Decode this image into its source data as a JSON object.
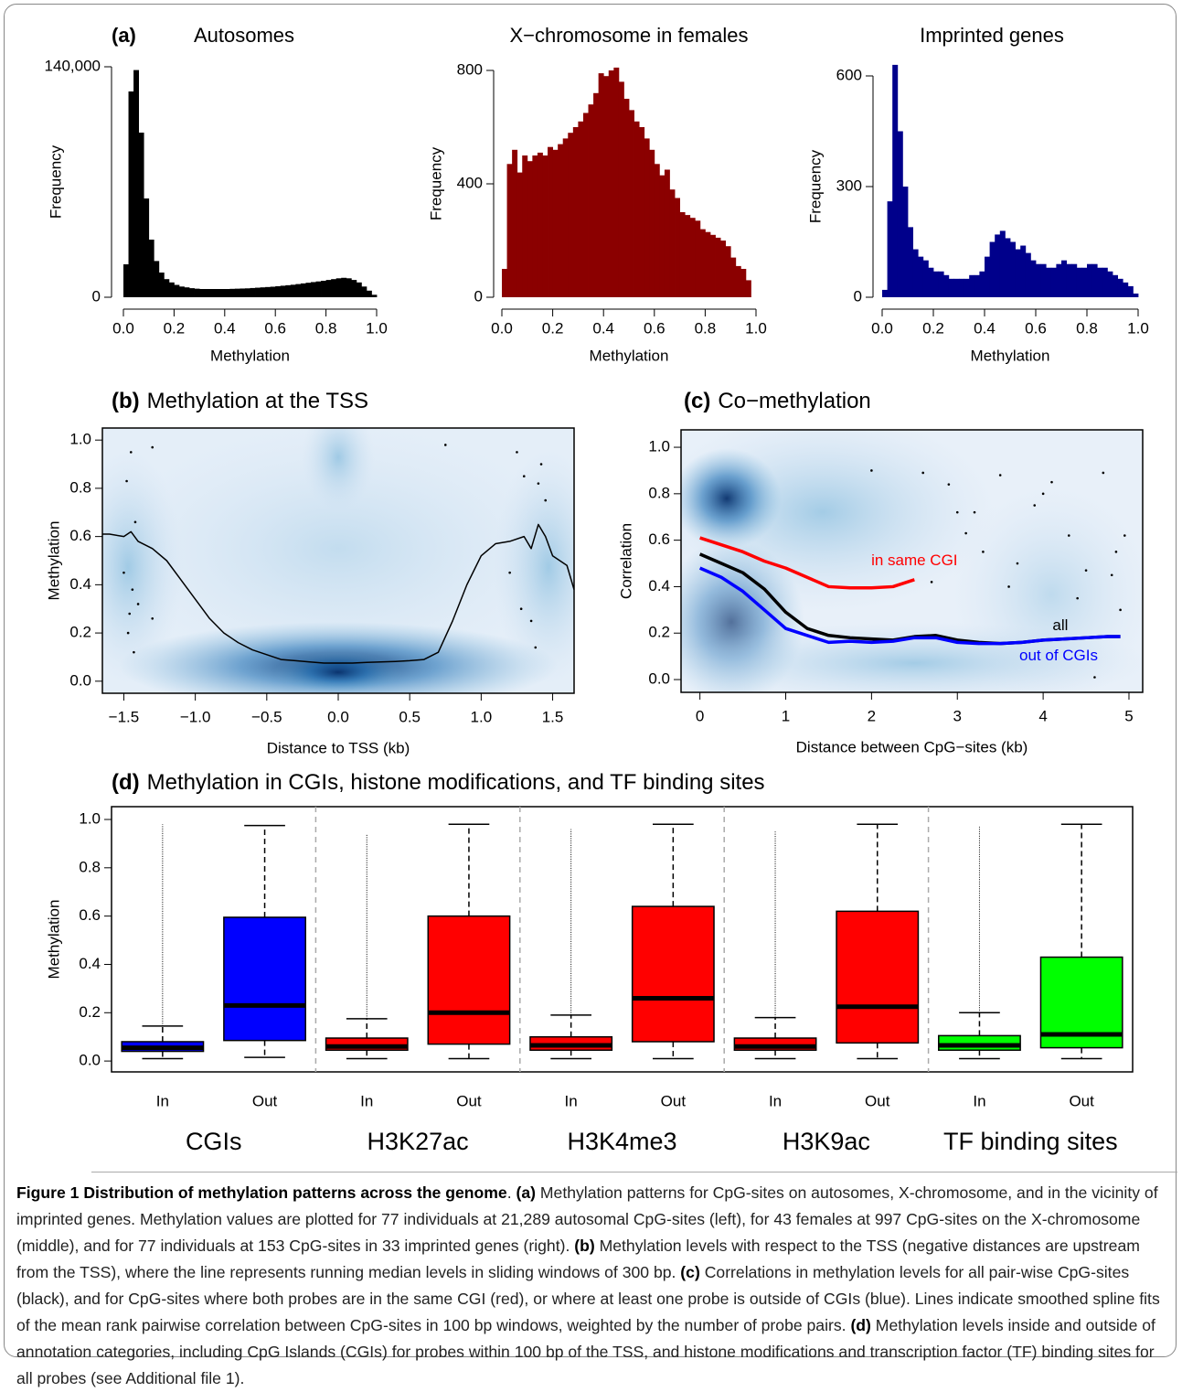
{
  "chart_data": [
    {
      "type": "histogram",
      "panel": "(a)",
      "title": "Autosomes",
      "xlabel": "Methylation",
      "ylabel": "Frequency",
      "color": "#000000",
      "bins": [
        0,
        0.02,
        0.04,
        0.06,
        0.08,
        0.1,
        0.12,
        0.14,
        0.16,
        0.18,
        0.2,
        0.22,
        0.24,
        0.26,
        0.28,
        0.3,
        0.32,
        0.34,
        0.36,
        0.38,
        0.4,
        0.42,
        0.44,
        0.46,
        0.48,
        0.5,
        0.52,
        0.54,
        0.56,
        0.58,
        0.6,
        0.62,
        0.64,
        0.66,
        0.68,
        0.7,
        0.72,
        0.74,
        0.76,
        0.78,
        0.8,
        0.82,
        0.84,
        0.86,
        0.88,
        0.9,
        0.92,
        0.94,
        0.96,
        0.98,
        1
      ],
      "counts": [
        20000,
        125000,
        138000,
        100000,
        60000,
        35000,
        22000,
        15000,
        11000,
        9000,
        7500,
        6500,
        6000,
        5500,
        5200,
        5000,
        5000,
        5000,
        5000,
        5000,
        5000,
        5100,
        5200,
        5300,
        5400,
        5600,
        5800,
        6000,
        6200,
        6400,
        6700,
        7000,
        7300,
        7600,
        8000,
        8400,
        8800,
        9200,
        9600,
        10000,
        10500,
        11000,
        11500,
        11800,
        11500,
        10500,
        9000,
        6500,
        4000,
        1500
      ],
      "xlim": [
        0,
        1
      ],
      "xticks": [
        {
          "value": 0,
          "label": "0.0"
        },
        0.2,
        0.4,
        0.6,
        0.8,
        {
          "value": 1,
          "label": "1.0"
        }
      ],
      "ylim": [
        0,
        140000
      ],
      "yticks": [
        0,
        {
          "value": 140000,
          "label": "140,000"
        }
      ]
    },
    {
      "type": "histogram",
      "title": "X−chromosome in females",
      "xlabel": "Methylation",
      "ylabel": "Frequency",
      "color": "#8b0000",
      "bins": [
        0,
        0.02,
        0.04,
        0.06,
        0.08,
        0.1,
        0.12,
        0.14,
        0.16,
        0.18,
        0.2,
        0.22,
        0.24,
        0.26,
        0.28,
        0.3,
        0.32,
        0.34,
        0.36,
        0.38,
        0.4,
        0.42,
        0.44,
        0.46,
        0.48,
        0.5,
        0.52,
        0.54,
        0.56,
        0.58,
        0.6,
        0.62,
        0.64,
        0.66,
        0.68,
        0.7,
        0.72,
        0.74,
        0.76,
        0.78,
        0.8,
        0.82,
        0.84,
        0.86,
        0.88,
        0.9,
        0.92,
        0.94,
        0.96,
        0.98,
        1
      ],
      "counts": [
        100,
        470,
        520,
        440,
        500,
        480,
        500,
        510,
        500,
        530,
        520,
        540,
        560,
        580,
        600,
        620,
        650,
        680,
        720,
        790,
        780,
        800,
        810,
        760,
        700,
        660,
        620,
        600,
        560,
        520,
        470,
        430,
        450,
        380,
        350,
        300,
        290,
        280,
        270,
        240,
        230,
        220,
        210,
        200,
        180,
        140,
        110,
        100,
        60,
        0
      ],
      "xlim": [
        0,
        1
      ],
      "xticks": [
        {
          "value": 0,
          "label": "0.0"
        },
        0.2,
        0.4,
        0.6,
        0.8,
        {
          "value": 1,
          "label": "1.0"
        }
      ],
      "ylim": [
        0,
        800
      ],
      "yticks": [
        0,
        400,
        800
      ]
    },
    {
      "type": "histogram",
      "title": "Imprinted genes",
      "xlabel": "Methylation",
      "ylabel": "Frequency",
      "color": "#00008b",
      "bins": [
        0,
        0.02,
        0.04,
        0.06,
        0.08,
        0.1,
        0.12,
        0.14,
        0.16,
        0.18,
        0.2,
        0.22,
        0.24,
        0.26,
        0.28,
        0.3,
        0.32,
        0.34,
        0.36,
        0.38,
        0.4,
        0.42,
        0.44,
        0.46,
        0.48,
        0.5,
        0.52,
        0.54,
        0.56,
        0.58,
        0.6,
        0.62,
        0.64,
        0.66,
        0.68,
        0.7,
        0.72,
        0.74,
        0.76,
        0.78,
        0.8,
        0.82,
        0.84,
        0.86,
        0.88,
        0.9,
        0.92,
        0.94,
        0.96,
        0.98,
        1
      ],
      "counts": [
        20,
        260,
        630,
        450,
        300,
        190,
        130,
        110,
        100,
        80,
        70,
        70,
        60,
        50,
        50,
        50,
        50,
        60,
        60,
        70,
        110,
        150,
        170,
        180,
        160,
        150,
        130,
        140,
        120,
        100,
        90,
        90,
        80,
        80,
        90,
        100,
        90,
        90,
        80,
        80,
        90,
        90,
        80,
        80,
        70,
        60,
        50,
        40,
        30,
        10
      ],
      "xlim": [
        0,
        1
      ],
      "xticks": [
        {
          "value": 0,
          "label": "0.0"
        },
        0.2,
        0.4,
        0.6,
        0.8,
        {
          "value": 1,
          "label": "1.0"
        }
      ],
      "ylim": [
        0,
        600
      ],
      "yticks": [
        0,
        300,
        600
      ]
    },
    {
      "type": "line",
      "panel": "(b)",
      "title": "Methylation at the TSS",
      "xlabel": "Distance to TSS (kb)",
      "ylabel": "Methylation",
      "xlim": [
        -1.65,
        1.65
      ],
      "ylim": [
        -0.05,
        1.05
      ],
      "xticks": [
        {
          "value": -1.5,
          "label": "−1.5"
        },
        {
          "value": -1,
          "label": "−1.0"
        },
        {
          "value": -0.5,
          "label": "−0.5"
        },
        {
          "value": 0,
          "label": "0.0"
        },
        0.5,
        {
          "value": 1,
          "label": "1.0"
        },
        1.5
      ],
      "yticks": [
        {
          "value": 0,
          "label": "0.0"
        },
        0.2,
        0.4,
        0.6,
        0.8,
        {
          "value": 1,
          "label": "1.0"
        }
      ],
      "series": [
        {
          "color": "#000000",
          "x": [
            -1.65,
            -1.6,
            -1.5,
            -1.45,
            -1.4,
            -1.3,
            -1.2,
            -1.1,
            -1.0,
            -0.9,
            -0.8,
            -0.7,
            -0.6,
            -0.5,
            -0.4,
            -0.3,
            -0.2,
            -0.1,
            0,
            0.1,
            0.2,
            0.3,
            0.4,
            0.5,
            0.6,
            0.7,
            0.8,
            0.9,
            1.0,
            1.1,
            1.2,
            1.3,
            1.35,
            1.4,
            1.45,
            1.5,
            1.6,
            1.65
          ],
          "values": [
            0.61,
            0.61,
            0.6,
            0.62,
            0.58,
            0.55,
            0.5,
            0.42,
            0.34,
            0.26,
            0.2,
            0.16,
            0.13,
            0.11,
            0.09,
            0.085,
            0.08,
            0.075,
            0.075,
            0.075,
            0.078,
            0.08,
            0.082,
            0.085,
            0.09,
            0.12,
            0.25,
            0.4,
            0.52,
            0.57,
            0.58,
            0.6,
            0.55,
            0.65,
            0.6,
            0.52,
            0.48,
            0.38
          ]
        }
      ],
      "points": {
        "x": [
          -1.45,
          -1.48,
          -1.42,
          -1.5,
          -1.44,
          -1.4,
          -1.46,
          -1.47,
          -1.43,
          -1.3,
          1.25,
          1.3,
          1.28,
          1.35,
          1.4,
          1.42,
          1.38,
          1.45,
          0.75,
          -1.3,
          1.2
        ],
        "values": [
          0.95,
          0.83,
          0.66,
          0.45,
          0.38,
          0.32,
          0.28,
          0.2,
          0.12,
          0.97,
          0.95,
          0.85,
          0.3,
          0.25,
          0.82,
          0.9,
          0.14,
          0.75,
          0.98,
          0.26,
          0.45
        ]
      }
    },
    {
      "type": "line",
      "panel": "(c)",
      "title": "Co−methylation",
      "xlabel": "Distance between CpG−sites (kb)",
      "ylabel": "Correlation",
      "xlim": [
        -0.22,
        5.16
      ],
      "ylim": [
        -0.055,
        1.075
      ],
      "xticks": [
        0,
        1,
        2,
        3,
        4,
        5
      ],
      "yticks": [
        {
          "value": 0,
          "label": "0.0"
        },
        0.2,
        0.4,
        0.6,
        0.8,
        {
          "value": 1,
          "label": "1.0"
        }
      ],
      "series": [
        {
          "name": "in same CGI",
          "color": "#ff0000",
          "x": [
            0,
            0.25,
            0.5,
            0.75,
            1,
            1.25,
            1.5,
            1.75,
            2,
            2.25,
            2.5
          ],
          "values": [
            0.61,
            0.58,
            0.55,
            0.51,
            0.48,
            0.44,
            0.4,
            0.395,
            0.395,
            0.4,
            0.43
          ]
        },
        {
          "name": "all",
          "color": "#000000",
          "x": [
            0,
            0.25,
            0.5,
            0.75,
            1,
            1.25,
            1.5,
            1.75,
            2,
            2.25,
            2.5,
            2.75,
            3,
            3.25,
            3.5,
            3.75,
            4,
            4.25,
            4.5,
            4.75,
            4.9
          ],
          "values": [
            0.54,
            0.5,
            0.46,
            0.39,
            0.29,
            0.22,
            0.19,
            0.18,
            0.175,
            0.17,
            0.185,
            0.19,
            0.17,
            0.16,
            0.155,
            0.16,
            0.17,
            0.175,
            0.18,
            0.185,
            0.185
          ]
        },
        {
          "name": "out of CGIs",
          "color": "#0000ff",
          "x": [
            0,
            0.25,
            0.5,
            0.75,
            1,
            1.25,
            1.5,
            1.75,
            2,
            2.25,
            2.5,
            2.75,
            3,
            3.25,
            3.5,
            3.75,
            4,
            4.25,
            4.5,
            4.75,
            4.9
          ],
          "values": [
            0.48,
            0.44,
            0.38,
            0.3,
            0.22,
            0.19,
            0.16,
            0.165,
            0.16,
            0.165,
            0.18,
            0.18,
            0.16,
            0.155,
            0.155,
            0.16,
            0.17,
            0.175,
            0.18,
            0.185,
            0.185
          ]
        }
      ],
      "points": {
        "x": [
          2.0,
          2.6,
          2.9,
          3.1,
          3.3,
          3.5,
          3.7,
          3.9,
          4.1,
          4.3,
          4.5,
          4.7,
          4.85,
          4.9,
          3.2,
          3.6,
          4.0,
          4.4,
          4.8,
          4.95,
          4.6,
          3.0,
          2.7
        ],
        "values": [
          0.9,
          0.89,
          0.84,
          0.63,
          0.55,
          0.88,
          0.5,
          0.75,
          0.85,
          0.62,
          0.47,
          0.89,
          0.55,
          0.3,
          0.72,
          0.4,
          0.8,
          0.35,
          0.45,
          0.62,
          0.01,
          0.72,
          0.42
        ]
      }
    },
    {
      "type": "box",
      "panel": "(d)",
      "title": "Methylation in CGIs, histone modifications, and TF binding sites",
      "ylabel": "Methylation",
      "categories": [
        "In",
        "Out",
        "In",
        "Out",
        "In",
        "Out",
        "In",
        "Out",
        "In",
        "Out"
      ],
      "groups": [
        "CGIs",
        "H3K27ac",
        "H3K4me3",
        "H3K9ac",
        "TF binding sites"
      ],
      "colors": [
        "#0000ff",
        "#0000ff",
        "#ff0000",
        "#ff0000",
        "#ff0000",
        "#ff0000",
        "#ff0000",
        "#ff0000",
        "#00ff00",
        "#00ff00"
      ],
      "boxes": [
        {
          "whislo": 0.01,
          "q1": 0.04,
          "med": 0.055,
          "q3": 0.08,
          "whishi": 0.145,
          "fliers_max": 0.98
        },
        {
          "whislo": 0.015,
          "q1": 0.085,
          "med": 0.23,
          "q3": 0.595,
          "whishi": 0.975
        },
        {
          "whislo": 0.01,
          "q1": 0.045,
          "med": 0.06,
          "q3": 0.095,
          "whishi": 0.175,
          "fliers_max": 0.94
        },
        {
          "whislo": 0.01,
          "q1": 0.07,
          "med": 0.2,
          "q3": 0.6,
          "whishi": 0.98
        },
        {
          "whislo": 0.01,
          "q1": 0.045,
          "med": 0.065,
          "q3": 0.1,
          "whishi": 0.19,
          "fliers_max": 0.96
        },
        {
          "whislo": 0.01,
          "q1": 0.08,
          "med": 0.26,
          "q3": 0.64,
          "whishi": 0.98
        },
        {
          "whislo": 0.01,
          "q1": 0.045,
          "med": 0.06,
          "q3": 0.095,
          "whishi": 0.18,
          "fliers_max": 0.95
        },
        {
          "whislo": 0.01,
          "q1": 0.075,
          "med": 0.225,
          "q3": 0.62,
          "whishi": 0.98
        },
        {
          "whislo": 0.01,
          "q1": 0.045,
          "med": 0.065,
          "q3": 0.105,
          "whishi": 0.2,
          "fliers_max": 0.97
        },
        {
          "whislo": 0.01,
          "q1": 0.055,
          "med": 0.11,
          "q3": 0.43,
          "whishi": 0.98
        }
      ],
      "ylim": [
        -0.045,
        1.053
      ],
      "yticks": [
        {
          "value": 0,
          "label": "0.0"
        },
        0.2,
        0.4,
        0.6,
        0.8,
        {
          "value": 1,
          "label": "1.0"
        }
      ]
    }
  ],
  "caption": [
    {
      "text": "Figure 1 Distribution of methylation patterns across the genome",
      "bold": true
    },
    {
      "text": ". "
    },
    {
      "text": "(a)",
      "bold": true
    },
    {
      "text": " Methylation patterns for CpG-sites on autosomes, X-chromosome, and in the vicinity of imprinted genes. Methylation values are plotted for 77 individuals at 21,289 autosomal CpG-sites (left), for 43 females at 997 CpG-sites on the X-chromosome (middle), and for 77 individuals at 153 CpG-sites in 33 imprinted genes (right). "
    },
    {
      "text": "(b)",
      "bold": true
    },
    {
      "text": " Methylation levels with respect to the TSS (negative distances are upstream from the TSS), where the line represents running median levels in sliding windows of 300 bp. "
    },
    {
      "text": "(c)",
      "bold": true
    },
    {
      "text": " Correlations in methylation levels for all pair-wise CpG-sites (black), and for CpG-sites where both probes are in the same CGI (red), or where at least one probe is outside of CGIs (blue). Lines indicate smoothed spline fits of the mean rank pairwise correlation between CpG-sites in 100 bp windows, weighted by the number of probe pairs. "
    },
    {
      "text": "(d)",
      "bold": true
    },
    {
      "text": " Methylation levels inside and outside of annotation categories, including CpG Islands (CGIs) for probes within 100 bp of the TSS, and histone modifications and transcription factor (TF) binding sites for all probes (see Additional file 1)."
    }
  ]
}
